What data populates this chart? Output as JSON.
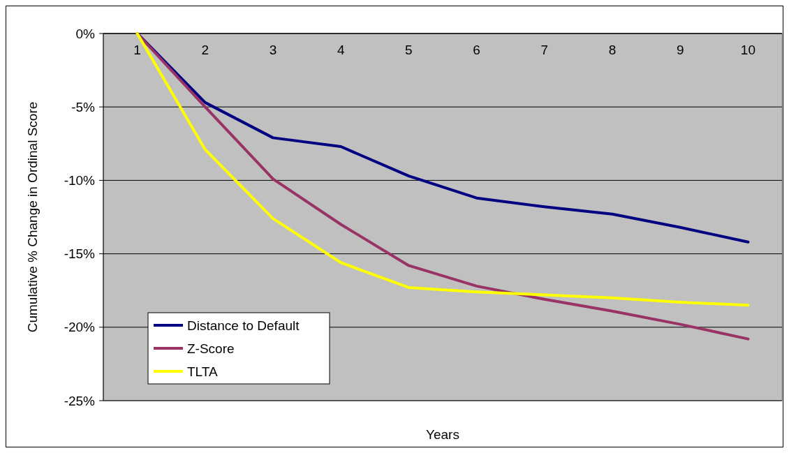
{
  "chart_data": {
    "type": "line",
    "xlabel": "Years",
    "ylabel": "Cumulative % Change in Ordinal Score",
    "categories": [
      "1",
      "2",
      "3",
      "4",
      "5",
      "6",
      "7",
      "8",
      "9",
      "10"
    ],
    "series": [
      {
        "name": "Distance to Default",
        "color": "#000080",
        "values": [
          0,
          -4.7,
          -7.1,
          -7.7,
          -9.7,
          -11.2,
          -11.8,
          -12.3,
          -13.2,
          -14.2
        ]
      },
      {
        "name": "Z-Score",
        "color": "#993366",
        "values": [
          0,
          -5.0,
          -9.9,
          -13.0,
          -15.8,
          -17.2,
          -18.1,
          -18.9,
          -19.8,
          -20.8
        ]
      },
      {
        "name": "TLTA",
        "color": "#ffff00",
        "values": [
          0,
          -7.9,
          -12.6,
          -15.6,
          -17.3,
          -17.6,
          -17.8,
          -18.0,
          -18.3,
          -18.5
        ]
      }
    ],
    "ylim": [
      -25,
      0
    ],
    "yticks": [
      {
        "value": 0,
        "label": "0%"
      },
      {
        "value": -5,
        "label": "-5%"
      },
      {
        "value": -10,
        "label": "-10%"
      },
      {
        "value": -15,
        "label": "-15%"
      },
      {
        "value": -20,
        "label": "-20%"
      },
      {
        "value": -25,
        "label": "-25%"
      }
    ],
    "grid": "y",
    "legend": "bottom left",
    "line_style": "solid"
  }
}
